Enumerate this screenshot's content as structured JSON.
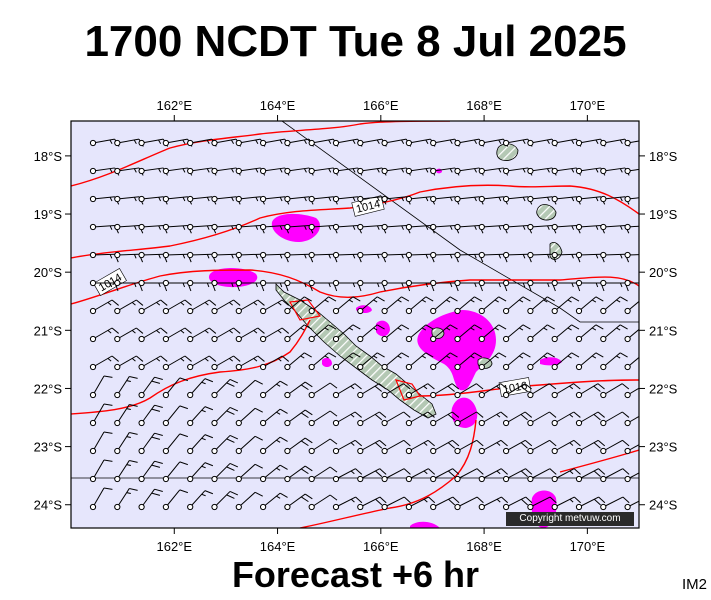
{
  "title": "1700 NCDT Tue 8 Jul 2025",
  "footer": "Forecast +6 hr",
  "product_code": "IM2",
  "copyright": "Copyright metvuw.com",
  "map": {
    "lon_range": [
      160.0,
      171.0
    ],
    "lat_range": [
      -24.4,
      -17.4
    ],
    "lon_ticks": [
      "162°E",
      "164°E",
      "166°E",
      "168°E",
      "170°E"
    ],
    "lat_ticks": [
      "18°S",
      "19°S",
      "20°S",
      "21°S",
      "22°S",
      "23°S",
      "24°S"
    ],
    "colors": {
      "sea": "#e6e6fc",
      "land": "#b4c8b4",
      "isobar": "#ff0000",
      "rain": "#ff00ff",
      "barb": "#000000"
    },
    "isobar_labels": [
      "1014",
      "1014",
      "1016"
    ],
    "icons": [
      "wind-barb-icon",
      "isobar-line",
      "rain-area",
      "island-shape"
    ]
  }
}
